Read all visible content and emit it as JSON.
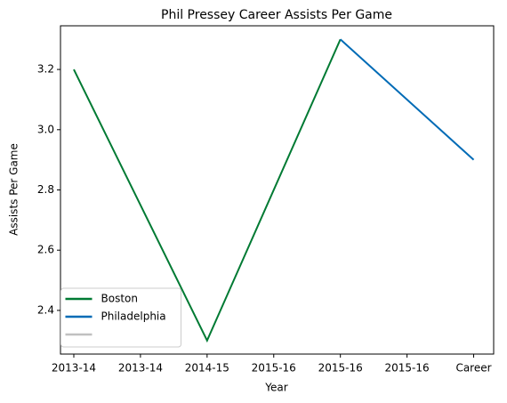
{
  "chart_data": {
    "type": "line",
    "title": "Phil Pressey Career Assists Per Game",
    "xlabel": "Year",
    "ylabel": "Assists Per Game",
    "xlim": [
      -0.2,
      6.3
    ],
    "xticks": [
      {
        "value": 0,
        "label": "2013-14"
      },
      {
        "value": 1,
        "label": "2013-14"
      },
      {
        "value": 2,
        "label": "2014-15"
      },
      {
        "value": 3,
        "label": "2015-16"
      },
      {
        "value": 4,
        "label": "2015-16"
      },
      {
        "value": 5,
        "label": "2015-16"
      },
      {
        "value": 6,
        "label": "Career"
      }
    ],
    "ylim": [
      2.255,
      3.345
    ],
    "yticks": [
      2.4,
      2.6,
      2.8,
      {
        "value": 3,
        "label": "3.0"
      },
      3.2
    ],
    "legend": "lower left",
    "series": [
      {
        "name": "Boston",
        "color": "#007a33",
        "x": [
          0,
          2,
          4
        ],
        "values": [
          3.2,
          2.3,
          3.3
        ]
      },
      {
        "name": "Philadelphia",
        "color": "#006bb6",
        "x": [
          4,
          6
        ],
        "values": [
          3.3,
          2.9
        ]
      },
      {
        "color": "#c0c0c0",
        "x": [],
        "values": []
      }
    ]
  }
}
